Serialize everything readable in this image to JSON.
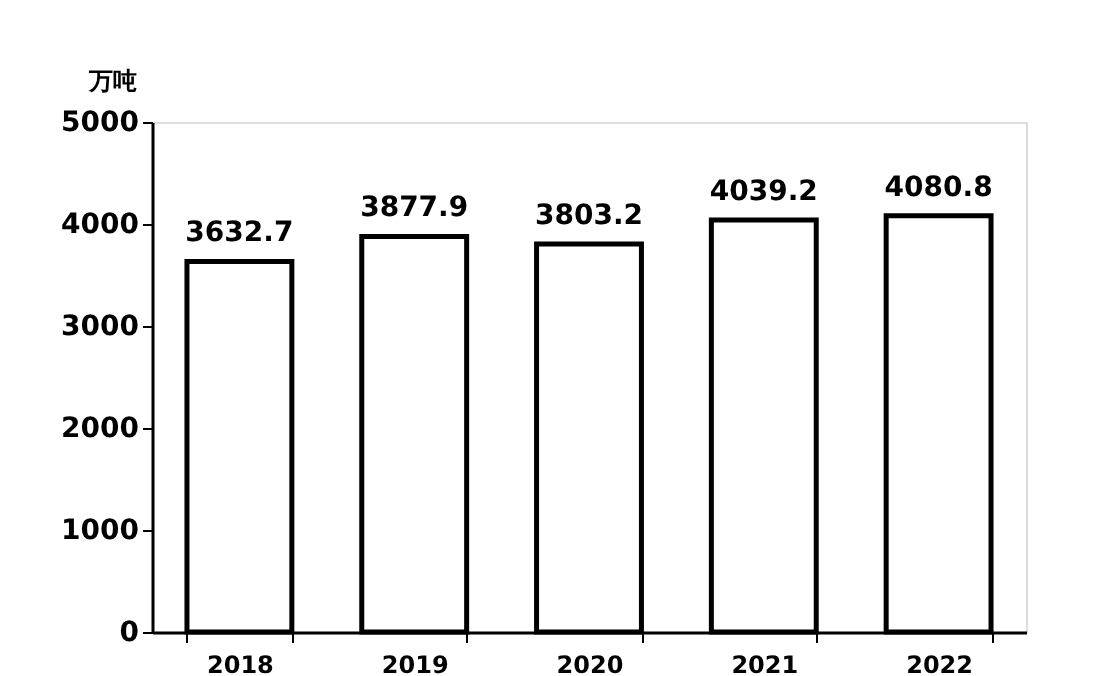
{
  "chart_data": {
    "type": "bar",
    "ylabel": "万吨",
    "categories": [
      "2018",
      "2019",
      "2020",
      "2021",
      "2022"
    ],
    "values": [
      3632.7,
      3877.9,
      3803.2,
      4039.2,
      4080.8
    ],
    "color": "#ffffff",
    "ylim": [
      0,
      5000
    ],
    "yticks": [
      0,
      1000,
      2000,
      3000,
      4000,
      5000
    ],
    "data_labels": true
  }
}
